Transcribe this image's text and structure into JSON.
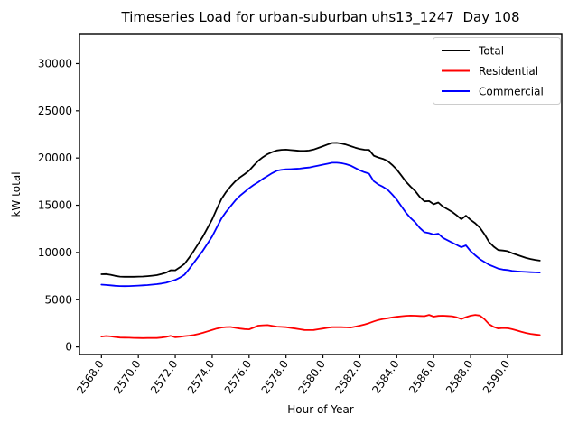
{
  "figure": {
    "background": "#ffffff",
    "title": "Timeseries Load for urban-suburban uhs13_1247  Day 108",
    "xlabel": "Hour of Year",
    "ylabel": "kW total"
  },
  "legend": {
    "position": "upper right",
    "entries": [
      {
        "label": "Total",
        "color": "#000000"
      },
      {
        "label": "Residential",
        "color": "#ff0000"
      },
      {
        "label": "Commercial",
        "color": "#0000ff"
      }
    ]
  },
  "chart_data": {
    "type": "line",
    "title": "Timeseries Load for urban-suburban uhs13_1247  Day 108",
    "xlabel": "Hour of Year",
    "ylabel": "kW total",
    "grid": false,
    "legend_position": "upper right",
    "x_start": 2568.0,
    "x_step": 0.25,
    "n_points": 96,
    "xlim": [
      2566.81,
      2592.94
    ],
    "ylim": [
      -800,
      33100
    ],
    "xticks": [
      2568,
      2570,
      2572,
      2574,
      2576,
      2578,
      2580,
      2582,
      2584,
      2586,
      2588,
      2590
    ],
    "xtick_labels": [
      "2568.0",
      "2570.0",
      "2572.0",
      "2574.0",
      "2576.0",
      "2578.0",
      "2580.0",
      "2582.0",
      "2584.0",
      "2586.0",
      "2588.0",
      "2590.0"
    ],
    "yticks": [
      0,
      5000,
      10000,
      15000,
      20000,
      25000,
      30000
    ],
    "ytick_labels": [
      "0",
      "5000",
      "10000",
      "15000",
      "20000",
      "25000",
      "30000"
    ],
    "series": [
      {
        "name": "Total",
        "color": "#000000",
        "values": [
          7700,
          7720,
          7640,
          7530,
          7450,
          7430,
          7430,
          7430,
          7450,
          7460,
          7500,
          7550,
          7600,
          7720,
          7860,
          8130,
          8120,
          8430,
          8800,
          9450,
          10160,
          10930,
          11700,
          12600,
          13500,
          14600,
          15660,
          16400,
          17010,
          17530,
          17950,
          18290,
          18660,
          19210,
          19710,
          20090,
          20410,
          20630,
          20800,
          20870,
          20890,
          20840,
          20800,
          20750,
          20750,
          20790,
          20900,
          21070,
          21250,
          21430,
          21590,
          21600,
          21540,
          21420,
          21260,
          21100,
          20960,
          20880,
          20870,
          20250,
          20060,
          19910,
          19690,
          19270,
          18790,
          18150,
          17500,
          16970,
          16510,
          15880,
          15410,
          15440,
          15110,
          15290,
          14860,
          14580,
          14300,
          13930,
          13510,
          13900,
          13460,
          13090,
          12630,
          11940,
          11120,
          10620,
          10260,
          10210,
          10140,
          9930,
          9760,
          9600,
          9430,
          9310,
          9220,
          9140
        ]
      },
      {
        "name": "Residential",
        "color": "#ff0000",
        "values": [
          1100,
          1160,
          1120,
          1050,
          1000,
          990,
          980,
          960,
          950,
          940,
          950,
          950,
          950,
          1000,
          1060,
          1180,
          1020,
          1080,
          1150,
          1200,
          1260,
          1380,
          1500,
          1650,
          1800,
          1950,
          2060,
          2100,
          2110,
          2030,
          1950,
          1890,
          1860,
          2060,
          2260,
          2290,
          2310,
          2230,
          2150,
          2120,
          2090,
          2020,
          1950,
          1870,
          1800,
          1790,
          1800,
          1870,
          1950,
          2030,
          2090,
          2100,
          2090,
          2070,
          2060,
          2150,
          2260,
          2380,
          2520,
          2700,
          2860,
          2960,
          3040,
          3120,
          3190,
          3250,
          3300,
          3320,
          3310,
          3280,
          3260,
          3390,
          3210,
          3290,
          3310,
          3280,
          3250,
          3130,
          2960,
          3150,
          3310,
          3390,
          3330,
          2940,
          2420,
          2120,
          1960,
          2010,
          1990,
          1880,
          1760,
          1620,
          1480,
          1390,
          1320,
          1260
        ]
      },
      {
        "name": "Commercial",
        "color": "#0000ff",
        "values": [
          6600,
          6560,
          6520,
          6480,
          6450,
          6440,
          6450,
          6470,
          6500,
          6520,
          6550,
          6600,
          6650,
          6720,
          6800,
          6950,
          7100,
          7350,
          7650,
          8250,
          8900,
          9550,
          10200,
          10950,
          11700,
          12650,
          13600,
          14300,
          14900,
          15500,
          16000,
          16400,
          16800,
          17150,
          17450,
          17800,
          18100,
          18400,
          18650,
          18750,
          18800,
          18820,
          18850,
          18880,
          18950,
          19000,
          19100,
          19200,
          19300,
          19400,
          19500,
          19500,
          19450,
          19350,
          19200,
          18950,
          18700,
          18500,
          18350,
          17550,
          17200,
          16950,
          16650,
          16150,
          15600,
          14900,
          14200,
          13650,
          13200,
          12600,
          12150,
          12050,
          11900,
          12000,
          11550,
          11300,
          11050,
          10800,
          10550,
          10750,
          10150,
          9700,
          9300,
          9000,
          8700,
          8500,
          8300,
          8200,
          8150,
          8050,
          8000,
          7980,
          7950,
          7920,
          7900,
          7880
        ]
      }
    ]
  }
}
